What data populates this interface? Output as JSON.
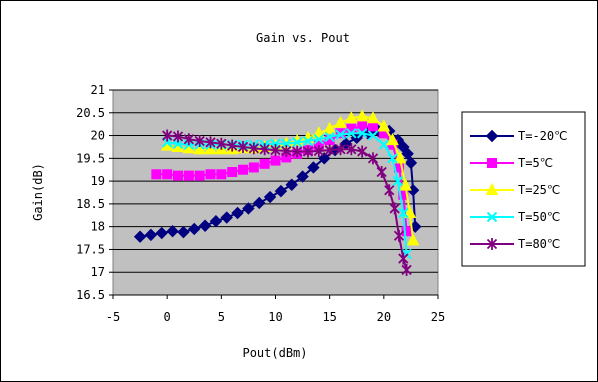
{
  "chart_data": {
    "type": "line",
    "title": "Gain vs. Pout",
    "xlabel": "Pout(dBm)",
    "ylabel": "Gain(dB)",
    "xlim": [
      -5,
      25
    ],
    "ylim": [
      16.5,
      21
    ],
    "xticks": [
      "-5",
      "0",
      "5",
      "10",
      "15",
      "20",
      "25"
    ],
    "yticks": [
      "16.5",
      "17",
      "17.5",
      "18",
      "18.5",
      "19",
      "19.5",
      "20",
      "20.5",
      "21"
    ],
    "grid": true,
    "legend_position": "right",
    "series": [
      {
        "name": "T=-20℃",
        "color": "#000080",
        "marker": "diamond",
        "x": [
          -2.5,
          -1.5,
          -0.5,
          0.5,
          1.5,
          2.5,
          3.5,
          4.5,
          5.5,
          6.5,
          7.5,
          8.5,
          9.5,
          10.5,
          11.5,
          12.5,
          13.5,
          14.5,
          15.5,
          16.5,
          17.5,
          18.5,
          19.5,
          20.5,
          21.3,
          21.8,
          22.2,
          22.5,
          22.7,
          22.9
        ],
        "y": [
          17.78,
          17.82,
          17.86,
          17.9,
          17.88,
          17.95,
          18.02,
          18.12,
          18.2,
          18.3,
          18.4,
          18.52,
          18.65,
          18.78,
          18.92,
          19.1,
          19.3,
          19.5,
          19.68,
          19.82,
          19.95,
          20.05,
          20.1,
          20.1,
          19.9,
          19.75,
          19.6,
          19.4,
          18.8,
          18.0
        ]
      },
      {
        "name": "T=5℃",
        "color": "#ff00ff",
        "marker": "square",
        "x": [
          -1,
          0,
          1,
          2,
          3,
          4,
          5,
          6,
          7,
          8,
          9,
          10,
          11,
          12,
          13,
          14,
          15,
          16,
          17,
          18,
          19,
          20,
          20.8,
          21.4,
          21.8,
          22.1
        ],
        "y": [
          19.15,
          19.15,
          19.12,
          19.12,
          19.12,
          19.15,
          19.15,
          19.2,
          19.25,
          19.3,
          19.38,
          19.45,
          19.52,
          19.6,
          19.68,
          19.78,
          19.9,
          20.05,
          20.15,
          20.2,
          20.2,
          20.05,
          19.8,
          19.3,
          18.7,
          17.9
        ]
      },
      {
        "name": "T=25℃",
        "color": "#ffff00",
        "marker": "triangle",
        "x": [
          0,
          1,
          2,
          3,
          4,
          5,
          6,
          7,
          8,
          9,
          10,
          11,
          12,
          13,
          14,
          15,
          16,
          17,
          18,
          19,
          20,
          20.8,
          21.5,
          22.0,
          22.4,
          22.7
        ],
        "y": [
          19.78,
          19.75,
          19.72,
          19.7,
          19.7,
          19.7,
          19.7,
          19.72,
          19.72,
          19.75,
          19.78,
          19.82,
          19.88,
          19.95,
          20.05,
          20.15,
          20.28,
          20.38,
          20.42,
          20.38,
          20.2,
          19.9,
          19.5,
          18.9,
          18.3,
          17.7
        ]
      },
      {
        "name": "T=50℃",
        "color": "#00ffff",
        "marker": "x",
        "x": [
          0,
          1,
          2,
          3,
          4,
          5,
          6,
          7,
          8,
          9,
          10,
          11,
          12,
          13,
          14,
          15,
          16,
          17,
          18,
          19,
          20,
          20.8,
          21.3,
          21.8,
          22.1
        ],
        "y": [
          19.85,
          19.82,
          19.8,
          19.8,
          19.8,
          19.8,
          19.8,
          19.8,
          19.8,
          19.8,
          19.82,
          19.82,
          19.85,
          19.88,
          19.92,
          19.97,
          20.02,
          20.05,
          20.05,
          20.0,
          19.8,
          19.5,
          19.0,
          18.3,
          17.4
        ]
      },
      {
        "name": "T=80℃",
        "color": "#800080",
        "marker": "star",
        "x": [
          0,
          1,
          2,
          3,
          4,
          5,
          6,
          7,
          8,
          9,
          10,
          11,
          12,
          13,
          14,
          15,
          16,
          17,
          18,
          19,
          19.8,
          20.5,
          21.0,
          21.4,
          21.8,
          22.1
        ],
        "y": [
          20.0,
          19.98,
          19.92,
          19.88,
          19.85,
          19.82,
          19.78,
          19.75,
          19.72,
          19.7,
          19.68,
          19.66,
          19.65,
          19.65,
          19.66,
          19.68,
          19.7,
          19.7,
          19.65,
          19.5,
          19.2,
          18.8,
          18.4,
          17.8,
          17.3,
          17.05
        ]
      }
    ]
  }
}
